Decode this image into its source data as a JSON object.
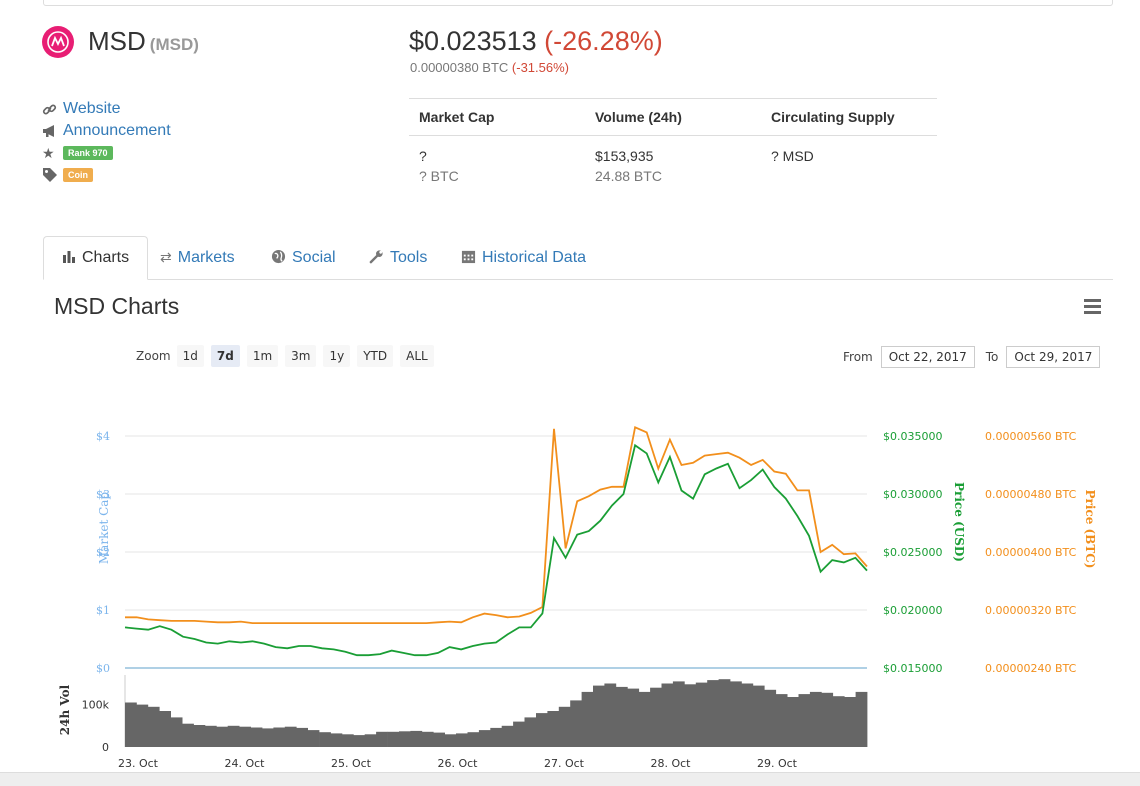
{
  "coin": {
    "name": "MSD",
    "symbol": "(MSD)"
  },
  "price": {
    "usd": "$0.023513",
    "usd_change": "(-26.28%)",
    "btc": "0.00000380 BTC",
    "btc_change": "(-31.56%)"
  },
  "links": {
    "website": "Website",
    "announcement": "Announcement",
    "rank": "Rank 970",
    "type": "Coin"
  },
  "stats": {
    "headers": [
      "Market Cap",
      "Volume (24h)",
      "Circulating Supply"
    ],
    "market_cap_usd": "?",
    "market_cap_btc": "? BTC",
    "volume_usd": "$153,935",
    "volume_btc": "24.88 BTC",
    "supply": "? MSD"
  },
  "tabs": {
    "charts": "Charts",
    "markets": "Markets",
    "social": "Social",
    "tools": "Tools",
    "historical": "Historical Data"
  },
  "chart_section": {
    "title": "MSD Charts",
    "zoom_label": "Zoom",
    "zoom_buttons": [
      "1d",
      "7d",
      "1m",
      "3m",
      "1y",
      "YTD",
      "ALL"
    ],
    "from_label": "From",
    "from_date": "Oct 22, 2017",
    "to_label": "To",
    "to_date": "Oct 29, 2017"
  },
  "chart_data": {
    "type": "line",
    "x_labels": [
      "23. Oct",
      "24. Oct",
      "25. Oct",
      "26. Oct",
      "27. Oct",
      "28. Oct",
      "29. Oct"
    ],
    "left_axis": {
      "label": "Market Cap",
      "ticks": [
        "$0",
        "$1",
        "$2",
        "$3",
        "$4"
      ]
    },
    "right_axis_usd": {
      "label": "Price (USD)",
      "ticks": [
        "$0.015000",
        "$0.020000",
        "$0.025000",
        "$0.030000",
        "$0.035000"
      ]
    },
    "right_axis_btc": {
      "label": "Price (BTC)",
      "ticks": [
        "0.00000240 BTC",
        "0.00000320 BTC",
        "0.00000400 BTC",
        "0.00000480 BTC",
        "0.00000560 BTC"
      ]
    },
    "volume_axis": {
      "label": "24h Vol",
      "ticks": [
        "0",
        "100k"
      ]
    },
    "series": [
      {
        "name": "Price (USD)",
        "color": "#1a9e35",
        "values": [
          0.0185,
          0.0184,
          0.0183,
          0.0186,
          0.0183,
          0.0177,
          0.0175,
          0.0172,
          0.0171,
          0.0173,
          0.0172,
          0.0173,
          0.0171,
          0.0168,
          0.0167,
          0.0169,
          0.0169,
          0.0167,
          0.0166,
          0.0164,
          0.0161,
          0.0161,
          0.0162,
          0.0165,
          0.0163,
          0.0161,
          0.0161,
          0.0163,
          0.0168,
          0.0166,
          0.0169,
          0.0171,
          0.0172,
          0.0179,
          0.0185,
          0.0185,
          0.0197,
          0.0262,
          0.0245,
          0.0265,
          0.0268,
          0.0277,
          0.029,
          0.03,
          0.0342,
          0.0335,
          0.031,
          0.0332,
          0.0303,
          0.0296,
          0.0317,
          0.0322,
          0.0326,
          0.0305,
          0.0312,
          0.0321,
          0.0306,
          0.0296,
          0.0281,
          0.0264,
          0.0233,
          0.0243,
          0.0241,
          0.0245,
          0.0234
        ]
      },
      {
        "name": "Price (BTC)",
        "color": "#f28f1c",
        "values": [
          3.1e-06,
          3.1e-06,
          3.07e-06,
          3.06e-06,
          3.05e-06,
          3.05e-06,
          3.05e-06,
          3.04e-06,
          3.03e-06,
          3.03e-06,
          3.04e-06,
          3.02e-06,
          3.02e-06,
          3.02e-06,
          3.02e-06,
          3.02e-06,
          3.02e-06,
          3.02e-06,
          3.02e-06,
          3.02e-06,
          3.02e-06,
          3.02e-06,
          3.02e-06,
          3.02e-06,
          3.02e-06,
          3.02e-06,
          3.02e-06,
          3.03e-06,
          3.04e-06,
          3.03e-06,
          3.1e-06,
          3.15e-06,
          3.13e-06,
          3.1e-06,
          3.11e-06,
          3.16e-06,
          3.24e-06,
          5.7e-06,
          4.05e-06,
          4.7e-06,
          4.77e-06,
          4.86e-06,
          4.9e-06,
          4.9e-06,
          5.72e-06,
          5.65e-06,
          5.15e-06,
          5.55e-06,
          5.2e-06,
          5.23e-06,
          5.33e-06,
          5.35e-06,
          5.37e-06,
          5.3e-06,
          5.2e-06,
          5.27e-06,
          5.11e-06,
          5.08e-06,
          4.85e-06,
          4.85e-06,
          4e-06,
          4.1e-06,
          3.97e-06,
          3.98e-06,
          3.8e-06
        ]
      },
      {
        "name": "24h Vol",
        "color": "#666666",
        "values": [
          105000,
          100000,
          95000,
          85000,
          70000,
          55000,
          52000,
          50000,
          48000,
          50000,
          48000,
          46000,
          44000,
          46000,
          48000,
          45000,
          40000,
          35000,
          32000,
          30000,
          28000,
          30000,
          36000,
          36000,
          37000,
          38000,
          36000,
          34000,
          30000,
          32000,
          35000,
          40000,
          45000,
          50000,
          60000,
          70000,
          80000,
          85000,
          95000,
          110000,
          130000,
          145000,
          150000,
          142000,
          138000,
          130000,
          140000,
          150000,
          155000,
          148000,
          152000,
          158000,
          160000,
          155000,
          150000,
          145000,
          135000,
          125000,
          118000,
          125000,
          130000,
          128000,
          120000,
          118000,
          130000
        ]
      }
    ]
  }
}
